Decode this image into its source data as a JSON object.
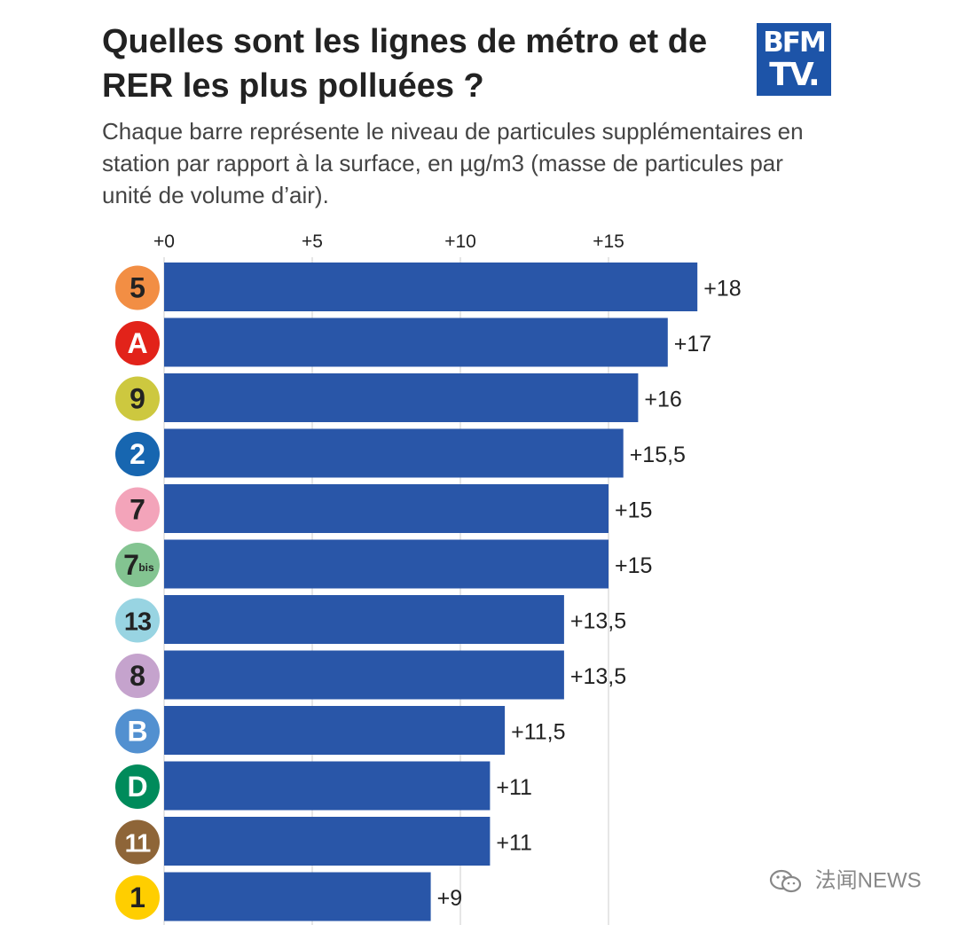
{
  "header": {
    "title_lines": [
      "Quelles sont les lignes de métro et de",
      "RER les plus polluées ?"
    ],
    "subtitle_lines": [
      "Chaque barre représente le niveau de particules supplémentaires en",
      "station par rapport à la surface, en µg/m3 (masse de particules par",
      "unité de volume d’air)."
    ]
  },
  "logo": {
    "line1": "BFM",
    "line2": "TV."
  },
  "watermark": {
    "text": "法闻NEWS",
    "icon": "wechat-icon"
  },
  "colors": {
    "bar": "#2956a8",
    "grid": "#dddddd",
    "text": "#222222"
  },
  "chart_data": {
    "type": "bar",
    "orientation": "horizontal",
    "title": "Quelles sont les lignes de métro et de RER les plus polluées ?",
    "xlabel": "",
    "ylabel": "",
    "xlim": [
      0,
      18
    ],
    "ticks": [
      {
        "value": 0,
        "label": "+0"
      },
      {
        "value": 5,
        "label": "+5"
      },
      {
        "value": 10,
        "label": "+10"
      },
      {
        "value": 15,
        "label": "+15"
      }
    ],
    "grid": true,
    "bars": [
      {
        "line": "5",
        "sup": "",
        "badge_color": "#f28e44",
        "badge_text_color": "#222222",
        "value": 18,
        "label": "+18"
      },
      {
        "line": "A",
        "sup": "",
        "badge_color": "#e2231a",
        "badge_text_color": "#ffffff",
        "value": 17,
        "label": "+17"
      },
      {
        "line": "9",
        "sup": "",
        "badge_color": "#cdc83f",
        "badge_text_color": "#222222",
        "value": 16,
        "label": "+16"
      },
      {
        "line": "2",
        "sup": "",
        "badge_color": "#1766b0",
        "badge_text_color": "#ffffff",
        "value": 15.5,
        "label": "+15,5"
      },
      {
        "line": "7",
        "sup": "",
        "badge_color": "#f3a4ba",
        "badge_text_color": "#222222",
        "value": 15,
        "label": "+15"
      },
      {
        "line": "7",
        "sup": "bis",
        "badge_color": "#83c491",
        "badge_text_color": "#222222",
        "value": 15,
        "label": "+15"
      },
      {
        "line": "13",
        "sup": "",
        "badge_color": "#98d4e2",
        "badge_text_color": "#222222",
        "value": 13.5,
        "label": "+13,5"
      },
      {
        "line": "8",
        "sup": "",
        "badge_color": "#c5a3cd",
        "badge_text_color": "#222222",
        "value": 13.5,
        "label": "+13,5"
      },
      {
        "line": "B",
        "sup": "",
        "badge_color": "#5290d0",
        "badge_text_color": "#ffffff",
        "value": 11.5,
        "label": "+11,5"
      },
      {
        "line": "D",
        "sup": "",
        "badge_color": "#008b5b",
        "badge_text_color": "#ffffff",
        "value": 11,
        "label": "+11"
      },
      {
        "line": "11",
        "sup": "",
        "badge_color": "#8e6538",
        "badge_text_color": "#ffffff",
        "value": 11,
        "label": "+11"
      },
      {
        "line": "1",
        "sup": "",
        "badge_color": "#ffce00",
        "badge_text_color": "#222222",
        "value": 9,
        "label": "+9"
      }
    ]
  }
}
